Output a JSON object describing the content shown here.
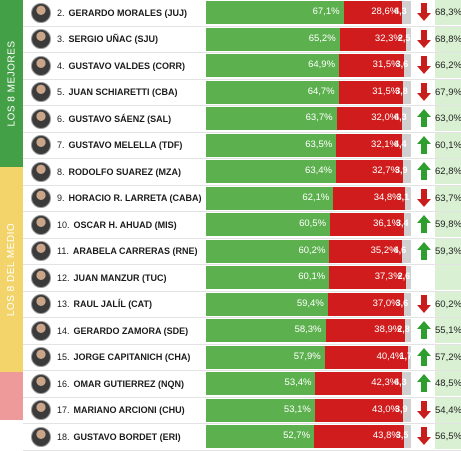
{
  "sections": [
    {
      "label": "LOS 8 MEJORES",
      "color": "#43a047"
    },
    {
      "label": "LOS 8 DEL MEDIO",
      "color": "#f3d46a"
    },
    {
      "label": "",
      "color": "#ef9a9a"
    }
  ],
  "colors": {
    "approve": "#5cb04e",
    "disapprove": "#d01c1c",
    "neutral": "#d0d0d0",
    "arrow_up": "#2e9e2e",
    "arrow_down": "#c91c1c"
  },
  "rows": [
    {
      "rank": "2.",
      "name": "GERARDO MORALES (JUJ)",
      "approve": "67,1%",
      "approve_val": 67.1,
      "disapprove": "28,6%",
      "disapprove_val": 28.6,
      "other": "4,3",
      "trend": "down",
      "prev": "68,3%"
    },
    {
      "rank": "3.",
      "name": "SERGIO UÑAC (SJU)",
      "approve": "65,2%",
      "approve_val": 65.2,
      "disapprove": "32,3%",
      "disapprove_val": 32.3,
      "other": "2,5",
      "trend": "down",
      "prev": "68,8%"
    },
    {
      "rank": "4.",
      "name": "GUSTAVO VALDES (CORR)",
      "approve": "64,9%",
      "approve_val": 64.9,
      "disapprove": "31,5%",
      "disapprove_val": 31.5,
      "other": "3,6",
      "trend": "down",
      "prev": "66,2%"
    },
    {
      "rank": "5.",
      "name": "JUAN SCHIARETTI (CBA)",
      "approve": "64,7%",
      "approve_val": 64.7,
      "disapprove": "31,5%",
      "disapprove_val": 31.5,
      "other": "3,8",
      "trend": "down",
      "prev": "67,9%"
    },
    {
      "rank": "6.",
      "name": "GUSTAVO SÁENZ (SAL)",
      "approve": "63,7%",
      "approve_val": 63.7,
      "disapprove": "32,0%",
      "disapprove_val": 32.0,
      "other": "4,3",
      "trend": "up",
      "prev": "63,0%"
    },
    {
      "rank": "7.",
      "name": "GUSTAVO MELELLA (TDF)",
      "approve": "63,5%",
      "approve_val": 63.5,
      "disapprove": "32,1%",
      "disapprove_val": 32.1,
      "other": "4,4",
      "trend": "up",
      "prev": "60,1%"
    },
    {
      "rank": "8.",
      "name": "RODOLFO SUAREZ (MZA)",
      "approve": "63,4%",
      "approve_val": 63.4,
      "disapprove": "32,7%",
      "disapprove_val": 32.7,
      "other": "3,9",
      "trend": "up",
      "prev": "62,8%"
    },
    {
      "rank": "9.",
      "name": "HORACIO R. LARRETA (CABA)",
      "approve": "62,1%",
      "approve_val": 62.1,
      "disapprove": "34,8%",
      "disapprove_val": 34.8,
      "other": "3,1",
      "trend": "down",
      "prev": "63,7%"
    },
    {
      "rank": "10.",
      "name": "OSCAR H. AHUAD (MIS)",
      "approve": "60,5%",
      "approve_val": 60.5,
      "disapprove": "36,1%",
      "disapprove_val": 36.1,
      "other": "3,4",
      "trend": "up",
      "prev": "59,8%"
    },
    {
      "rank": "11.",
      "name": "ARABELA CARRERAS (RNE)",
      "approve": "60,2%",
      "approve_val": 60.2,
      "disapprove": "35,2%",
      "disapprove_val": 35.2,
      "other": "4,6",
      "trend": "up",
      "prev": "59,3%"
    },
    {
      "rank": "12.",
      "name": "JUAN MANZUR (TUC)",
      "approve": "60,1%",
      "approve_val": 60.1,
      "disapprove": "37,3%",
      "disapprove_val": 37.3,
      "other": "2,6",
      "trend": "none",
      "prev": ""
    },
    {
      "rank": "13.",
      "name": "RAUL JALÍL (CAT)",
      "approve": "59,4%",
      "approve_val": 59.4,
      "disapprove": "37,0%",
      "disapprove_val": 37.0,
      "other": "3,6",
      "trend": "down",
      "prev": "60,2%"
    },
    {
      "rank": "14.",
      "name": "GERARDO ZAMORA (SDE)",
      "approve": "58,3%",
      "approve_val": 58.3,
      "disapprove": "38,9%",
      "disapprove_val": 38.9,
      "other": "2,8",
      "trend": "up",
      "prev": "55,1%"
    },
    {
      "rank": "15.",
      "name": "JORGE CAPITANICH (CHA)",
      "approve": "57,9%",
      "approve_val": 57.9,
      "disapprove": "40,4%",
      "disapprove_val": 40.4,
      "other": "1,7",
      "trend": "up",
      "prev": "57,2%"
    },
    {
      "rank": "16.",
      "name": "OMAR GUTIERREZ (NQN)",
      "approve": "53,4%",
      "approve_val": 53.4,
      "disapprove": "42,3%",
      "disapprove_val": 42.3,
      "other": "4,3",
      "trend": "up",
      "prev": "48,5%"
    },
    {
      "rank": "17.",
      "name": "MARIANO ARCIONI (CHU)",
      "approve": "53,1%",
      "approve_val": 53.1,
      "disapprove": "43,0%",
      "disapprove_val": 43.0,
      "other": "3,9",
      "trend": "down",
      "prev": "54,4%"
    },
    {
      "rank": "18.",
      "name": "GUSTAVO BORDET (ERI)",
      "approve": "52,7%",
      "approve_val": 52.7,
      "disapprove": "43,8%",
      "disapprove_val": 43.8,
      "other": "3,5",
      "trend": "down",
      "prev": "56,5%"
    }
  ]
}
